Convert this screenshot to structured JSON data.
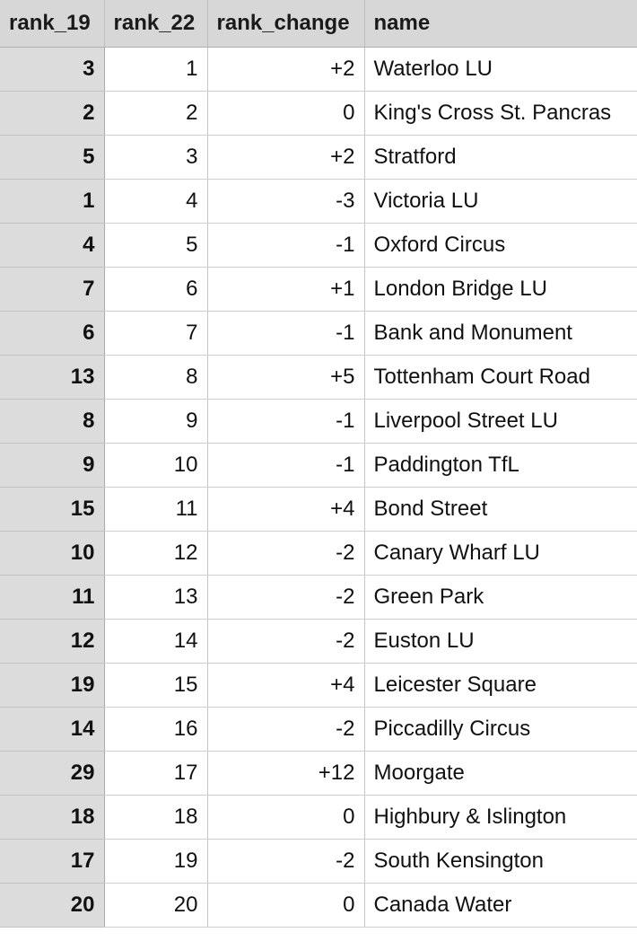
{
  "table": {
    "columns": [
      "rank_19",
      "rank_22",
      "rank_change",
      "name"
    ],
    "rows": [
      {
        "rank_19": "3",
        "rank_22": "1",
        "rank_change": "+2",
        "name": "Waterloo LU"
      },
      {
        "rank_19": "2",
        "rank_22": "2",
        "rank_change": "0",
        "name": "King's Cross St. Pancras"
      },
      {
        "rank_19": "5",
        "rank_22": "3",
        "rank_change": "+2",
        "name": "Stratford"
      },
      {
        "rank_19": "1",
        "rank_22": "4",
        "rank_change": "-3",
        "name": "Victoria LU"
      },
      {
        "rank_19": "4",
        "rank_22": "5",
        "rank_change": "-1",
        "name": "Oxford Circus"
      },
      {
        "rank_19": "7",
        "rank_22": "6",
        "rank_change": "+1",
        "name": "London Bridge LU"
      },
      {
        "rank_19": "6",
        "rank_22": "7",
        "rank_change": "-1",
        "name": "Bank and Monument"
      },
      {
        "rank_19": "13",
        "rank_22": "8",
        "rank_change": "+5",
        "name": "Tottenham Court Road"
      },
      {
        "rank_19": "8",
        "rank_22": "9",
        "rank_change": "-1",
        "name": "Liverpool Street LU"
      },
      {
        "rank_19": "9",
        "rank_22": "10",
        "rank_change": "-1",
        "name": "Paddington TfL"
      },
      {
        "rank_19": "15",
        "rank_22": "11",
        "rank_change": "+4",
        "name": "Bond Street"
      },
      {
        "rank_19": "10",
        "rank_22": "12",
        "rank_change": "-2",
        "name": "Canary Wharf LU"
      },
      {
        "rank_19": "11",
        "rank_22": "13",
        "rank_change": "-2",
        "name": "Green Park"
      },
      {
        "rank_19": "12",
        "rank_22": "14",
        "rank_change": "-2",
        "name": "Euston LU"
      },
      {
        "rank_19": "19",
        "rank_22": "15",
        "rank_change": "+4",
        "name": "Leicester Square"
      },
      {
        "rank_19": "14",
        "rank_22": "16",
        "rank_change": "-2",
        "name": "Piccadilly Circus"
      },
      {
        "rank_19": "29",
        "rank_22": "17",
        "rank_change": "+12",
        "name": "Moorgate"
      },
      {
        "rank_19": "18",
        "rank_22": "18",
        "rank_change": "0",
        "name": "Highbury & Islington"
      },
      {
        "rank_19": "17",
        "rank_22": "19",
        "rank_change": "-2",
        "name": "South Kensington"
      },
      {
        "rank_19": "20",
        "rank_22": "20",
        "rank_change": "0",
        "name": "Canada Water"
      }
    ]
  }
}
